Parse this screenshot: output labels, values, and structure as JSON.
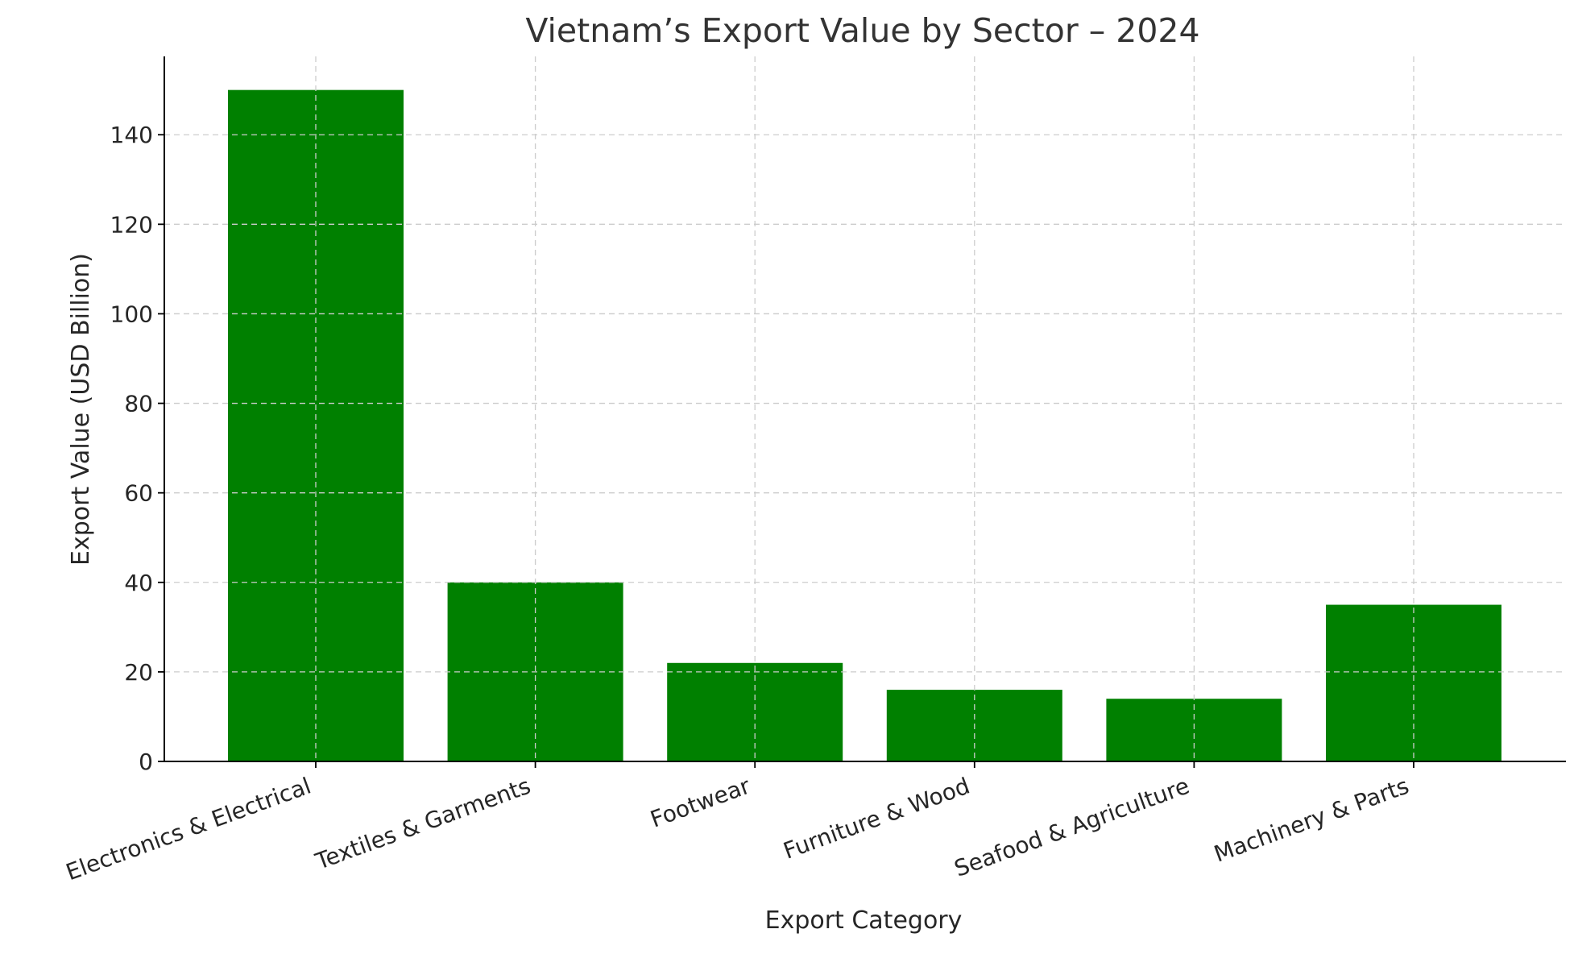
{
  "chart_data": {
    "type": "bar",
    "title": "Vietnam’s Export Value by Sector – 2024",
    "xlabel": "Export Category",
    "ylabel": "Export Value (USD Billion)",
    "categories": [
      "Electronics & Electrical",
      "Textiles & Garments",
      "Footwear",
      "Furniture & Wood",
      "Seafood & Agriculture",
      "Machinery & Parts"
    ],
    "values": [
      150,
      40,
      22,
      16,
      14,
      35
    ],
    "ylim": [
      0,
      157.5
    ],
    "yticks": [
      0,
      20,
      40,
      60,
      80,
      100,
      120,
      140
    ],
    "bar_color": "#008000",
    "grid": true,
    "legend": "none"
  }
}
